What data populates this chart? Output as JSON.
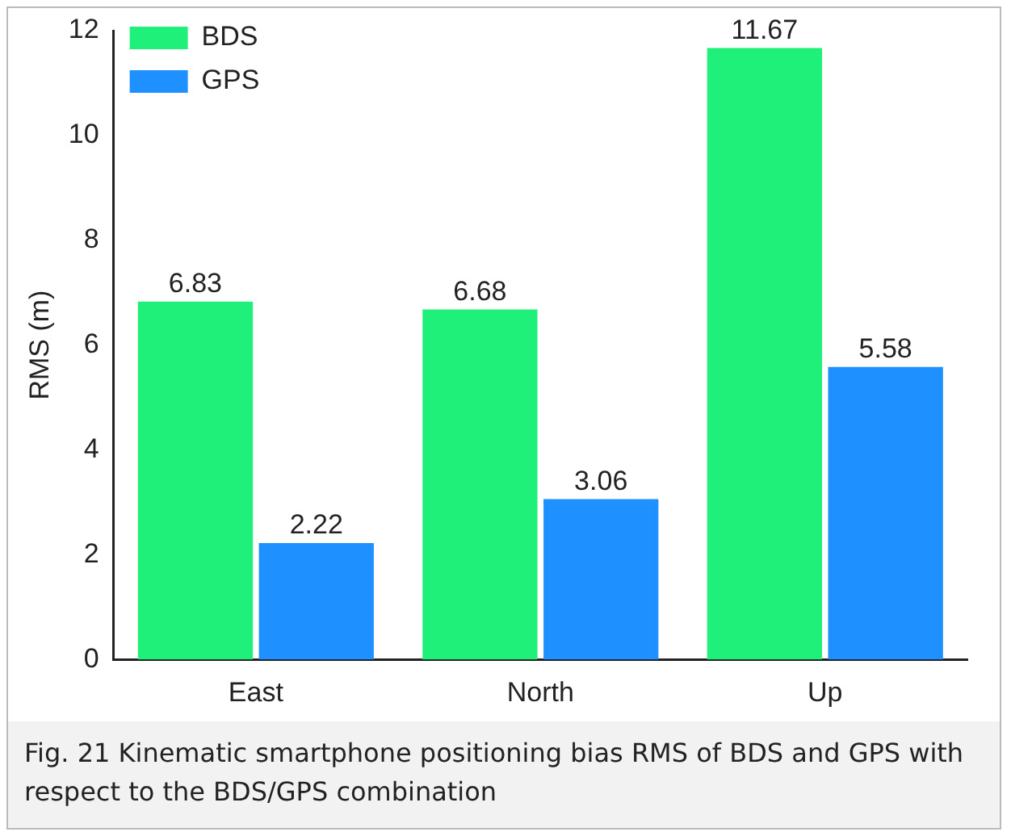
{
  "chart_data": {
    "type": "bar",
    "categories": [
      "East",
      "North",
      "Up"
    ],
    "series": [
      {
        "name": "BDS",
        "color": "#1ef07a",
        "values": [
          6.83,
          6.68,
          11.67
        ]
      },
      {
        "name": "GPS",
        "color": "#1e90ff",
        "values": [
          2.22,
          3.06,
          5.58
        ]
      }
    ],
    "ylabel": "RMS (m)",
    "ylim": [
      0,
      12
    ],
    "yticks": [
      0,
      2,
      4,
      6,
      8,
      10,
      12
    ],
    "grid": false,
    "legend": "top left",
    "data_labels": true,
    "annotations": [
      "Fig. 21  Kinematic smartphone positioning bias RMS of BDS and GPS with respect to the BDS/GPS combination"
    ]
  }
}
